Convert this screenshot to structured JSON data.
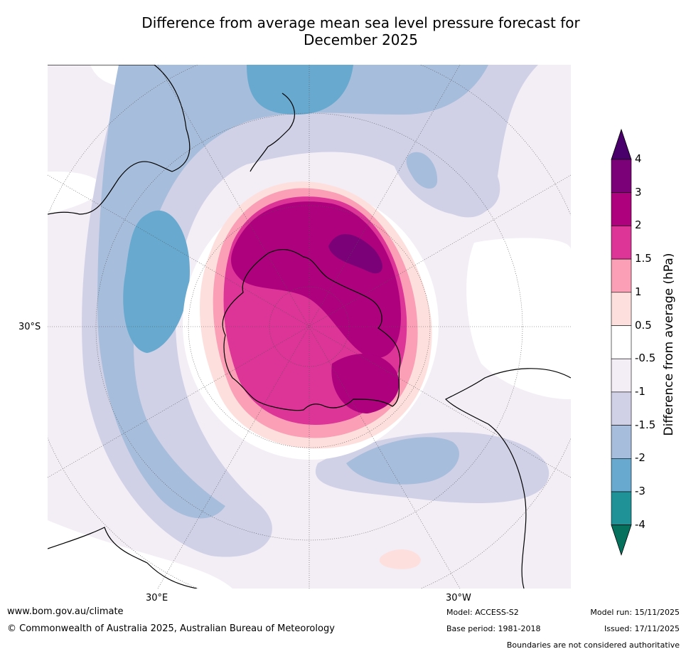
{
  "title_line1": "Difference from average mean sea level pressure forecast for",
  "title_line2": "December 2025",
  "map": {
    "projection": "south-polar-stereographic",
    "lat_label_30s": "30°S",
    "lon_label_30e": "30°E",
    "lon_label_30w": "30°W",
    "colors": {
      "n4": "#06725e",
      "n3": "#1e9297",
      "n2": "#67a9cf",
      "n15": "#a6bddb",
      "n1": "#d0d1e6",
      "n05": "#f3eef5",
      "zero": "#ffffff",
      "p05": "#fde0dd",
      "p1": "#fa9fb5",
      "p15": "#dd3497",
      "p2": "#ae017e",
      "p3": "#7a0177",
      "p4": "#49006a"
    }
  },
  "colorbar": {
    "label": "Difference from average (hPa)",
    "ticks": [
      "4",
      "3",
      "2",
      "1.5",
      "1",
      "0.5",
      "-0.5",
      "-1",
      "-1.5",
      "-2",
      "-3",
      "-4"
    ],
    "bands": [
      "#7a0177",
      "#ae017e",
      "#dd3497",
      "#fa9fb5",
      "#fde0dd",
      "#ffffff",
      "#f3eef5",
      "#d0d1e6",
      "#a6bddb",
      "#67a9cf",
      "#1e9297"
    ],
    "extend_high": "#49006a",
    "extend_low": "#06725e"
  },
  "footer": {
    "url": "www.bom.gov.au/climate",
    "copyright": "© Commonwealth of Australia 2025, Australian Bureau of Meteorology",
    "model": "Model: ACCESS-S2",
    "base_period": "Base period: 1981-2018",
    "model_run": "Model run: 15/11/2025",
    "issued": "Issued: 17/11/2025",
    "disclaimer": "Boundaries are not considered authoritative"
  }
}
